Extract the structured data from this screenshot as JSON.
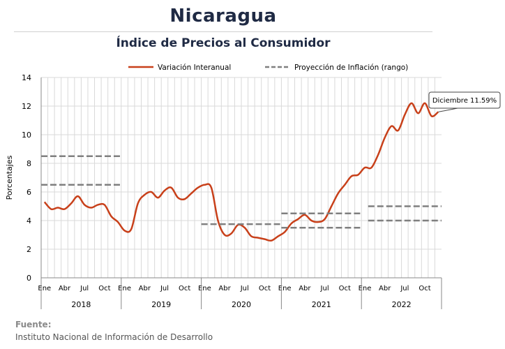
{
  "title": "Nicaragua",
  "subtitle": "Índice de Precios al Consumidor",
  "source": {
    "heading": "Fuente:",
    "text": "Instituto Nacional de Información de  Desarrollo"
  },
  "chart_data": {
    "type": "line",
    "ylabel": "Porcentajes",
    "ylim": [
      0,
      14
    ],
    "yticks": [
      0,
      2,
      4,
      6,
      8,
      10,
      12,
      14
    ],
    "grid": true,
    "legend_position": "top",
    "month_labels": [
      "Ene",
      "Abr",
      "Jul",
      "Oct"
    ],
    "years": [
      "2018",
      "2019",
      "2020",
      "2021",
      "2022"
    ],
    "x_start": "2018-01",
    "x_end": "2022-12",
    "series": [
      {
        "name": "Variación Interanual",
        "color": "#c8401a",
        "style": "solid",
        "x": [
          "2018-01",
          "2018-02",
          "2018-03",
          "2018-04",
          "2018-05",
          "2018-06",
          "2018-07",
          "2018-08",
          "2018-09",
          "2018-10",
          "2018-11",
          "2018-12",
          "2019-01",
          "2019-02",
          "2019-03",
          "2019-04",
          "2019-05",
          "2019-06",
          "2019-07",
          "2019-08",
          "2019-09",
          "2019-10",
          "2019-11",
          "2019-12",
          "2020-01",
          "2020-02",
          "2020-03",
          "2020-04",
          "2020-05",
          "2020-06",
          "2020-07",
          "2020-08",
          "2020-09",
          "2020-10",
          "2020-11",
          "2020-12",
          "2021-01",
          "2021-02",
          "2021-03",
          "2021-04",
          "2021-05",
          "2021-06",
          "2021-07",
          "2021-08",
          "2021-09",
          "2021-10",
          "2021-11",
          "2021-12",
          "2022-01",
          "2022-02",
          "2022-03",
          "2022-04",
          "2022-05",
          "2022-06",
          "2022-07",
          "2022-08",
          "2022-09",
          "2022-10",
          "2022-11",
          "2022-12"
        ],
        "values": [
          5.3,
          4.8,
          4.9,
          4.8,
          5.2,
          5.7,
          5.1,
          4.9,
          5.1,
          5.1,
          4.3,
          3.9,
          3.3,
          3.4,
          5.2,
          5.8,
          6.0,
          5.6,
          6.1,
          6.3,
          5.6,
          5.5,
          5.9,
          6.3,
          6.5,
          6.3,
          4.0,
          3.0,
          3.1,
          3.7,
          3.5,
          2.9,
          2.8,
          2.7,
          2.6,
          2.9,
          3.2,
          3.8,
          4.1,
          4.4,
          4.0,
          3.9,
          4.1,
          5.0,
          5.9,
          6.5,
          7.1,
          7.2,
          7.7,
          7.7,
          8.6,
          9.8,
          10.6,
          10.3,
          11.4,
          12.2,
          11.5,
          12.2,
          11.3,
          11.59
        ]
      },
      {
        "name": "Proyección de Inflación (rango)",
        "color": "#7f7f7f",
        "style": "dashed",
        "segments": [
          {
            "from": "2018-01",
            "to": "2018-12",
            "value": 8.5
          },
          {
            "from": "2018-01",
            "to": "2018-12",
            "value": 6.5
          },
          {
            "from": "2020-01",
            "to": "2020-12",
            "value": 3.75
          },
          {
            "from": "2021-01",
            "to": "2021-12",
            "value": 4.5
          },
          {
            "from": "2021-01",
            "to": "2021-12",
            "value": 3.5
          },
          {
            "from": "2022-02",
            "to": "2022-12",
            "value": 5.0
          },
          {
            "from": "2022-02",
            "to": "2022-12",
            "value": 4.0
          }
        ]
      }
    ],
    "annotation": {
      "text": "Diciembre 11.59%",
      "x": "2022-12",
      "y": 11.59
    }
  }
}
